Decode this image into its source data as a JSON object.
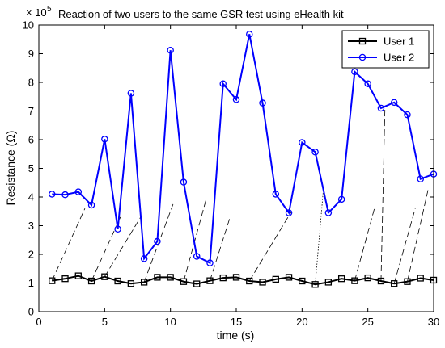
{
  "chart_data": {
    "type": "line",
    "title": "Reaction of two users to the same GSR test using eHealth kit",
    "xlabel": "time (s)",
    "ylabel": "Resistance (Ω)",
    "y_exponent_label": "× 10",
    "y_exponent": "5",
    "xlim": [
      0,
      30
    ],
    "ylim": [
      0,
      10
    ],
    "xticks": [
      "0",
      "5",
      "10",
      "15",
      "20",
      "25",
      "30"
    ],
    "yticks": [
      "0",
      "1",
      "2",
      "3",
      "4",
      "5",
      "6",
      "7",
      "8",
      "9",
      "10"
    ],
    "grid": false,
    "legend_position": "top-right",
    "x": [
      1,
      2,
      3,
      4,
      5,
      6,
      7,
      8,
      9,
      10,
      11,
      12,
      13,
      14,
      15,
      16,
      17,
      18,
      19,
      20,
      21,
      22,
      23,
      24,
      25,
      26,
      27,
      28,
      29,
      30
    ],
    "series": [
      {
        "name": "User 1",
        "color": "#000000",
        "marker": "square",
        "values": [
          1.08,
          1.15,
          1.25,
          1.07,
          1.22,
          1.07,
          0.98,
          1.03,
          1.2,
          1.2,
          1.05,
          0.97,
          1.08,
          1.18,
          1.2,
          1.07,
          1.03,
          1.13,
          1.2,
          1.07,
          0.95,
          1.03,
          1.15,
          1.08,
          1.18,
          1.07,
          0.98,
          1.05,
          1.17,
          1.1
        ]
      },
      {
        "name": "User 2",
        "color": "#0000ff",
        "marker": "circle",
        "values": [
          4.1,
          4.08,
          4.18,
          3.72,
          6.02,
          2.88,
          7.62,
          1.85,
          2.45,
          9.12,
          4.52,
          1.93,
          1.7,
          7.95,
          7.4,
          9.68,
          7.28,
          4.1,
          3.45,
          5.9,
          5.57,
          3.45,
          3.92,
          8.37,
          7.95,
          7.1,
          7.3,
          6.87,
          4.63,
          4.8
        ]
      }
    ],
    "annotations": [
      {
        "from": [
          1,
          1.08
        ],
        "to": [
          3.5,
          3.6
        ],
        "style": "dashed"
      },
      {
        "from": [
          4,
          1.07
        ],
        "to": [
          6.2,
          3.3
        ],
        "style": "dashed"
      },
      {
        "from": [
          5,
          1.22
        ],
        "to": [
          7.8,
          3.35
        ],
        "style": "dashed"
      },
      {
        "from": [
          8,
          1.03
        ],
        "to": [
          10.2,
          3.75
        ],
        "style": "dashed"
      },
      {
        "from": [
          11,
          1.05
        ],
        "to": [
          12.7,
          3.9
        ],
        "style": "dashed"
      },
      {
        "from": [
          13,
          1.08
        ],
        "to": [
          14.5,
          3.25
        ],
        "style": "dashed"
      },
      {
        "from": [
          16,
          1.07
        ],
        "to": [
          19.2,
          3.5
        ],
        "style": "dashed"
      },
      {
        "from": [
          21,
          0.95
        ],
        "to": [
          21.6,
          4.15
        ],
        "style": "dotted"
      },
      {
        "from": [
          24,
          1.08
        ],
        "to": [
          25.5,
          3.6
        ],
        "style": "dashed"
      },
      {
        "from": [
          26,
          1.07
        ],
        "to": [
          26.3,
          7.15
        ],
        "style": "dashed"
      },
      {
        "from": [
          27,
          0.98
        ],
        "to": [
          28.6,
          3.6
        ],
        "style": "dashed"
      },
      {
        "from": [
          28,
          1.05
        ],
        "to": [
          29.6,
          4.3
        ],
        "style": "dashed"
      }
    ]
  }
}
